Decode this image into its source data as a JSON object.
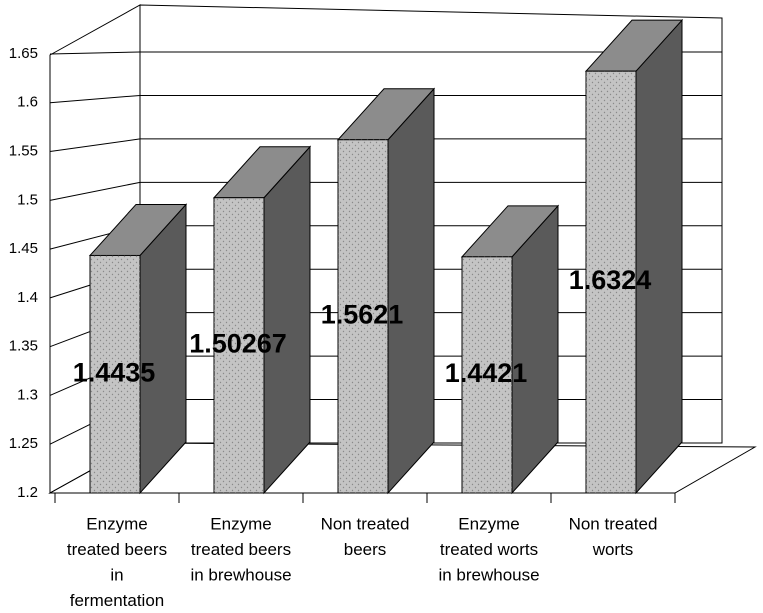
{
  "chart_data": {
    "type": "bar3d",
    "categories": [
      [
        "Enzyme",
        "treated beers",
        "in",
        "fermentation"
      ],
      [
        "Enzyme",
        "treated beers",
        "in brewhouse"
      ],
      [
        "Non treated",
        "beers"
      ],
      [
        "Enzyme",
        "treated worts",
        "in brewhouse"
      ],
      [
        "Non treated",
        "worts"
      ]
    ],
    "values": [
      1.4435,
      1.50267,
      1.5621,
      1.4421,
      1.6324
    ],
    "ylim": [
      1.2,
      1.65
    ],
    "yticks": [
      1.2,
      1.25,
      1.3,
      1.35,
      1.4,
      1.45,
      1.5,
      1.55,
      1.6,
      1.65
    ],
    "grid": true,
    "colors": {
      "front": "#c4c4c4",
      "side": "#5a5a5a",
      "top": "#8c8c8c"
    }
  }
}
